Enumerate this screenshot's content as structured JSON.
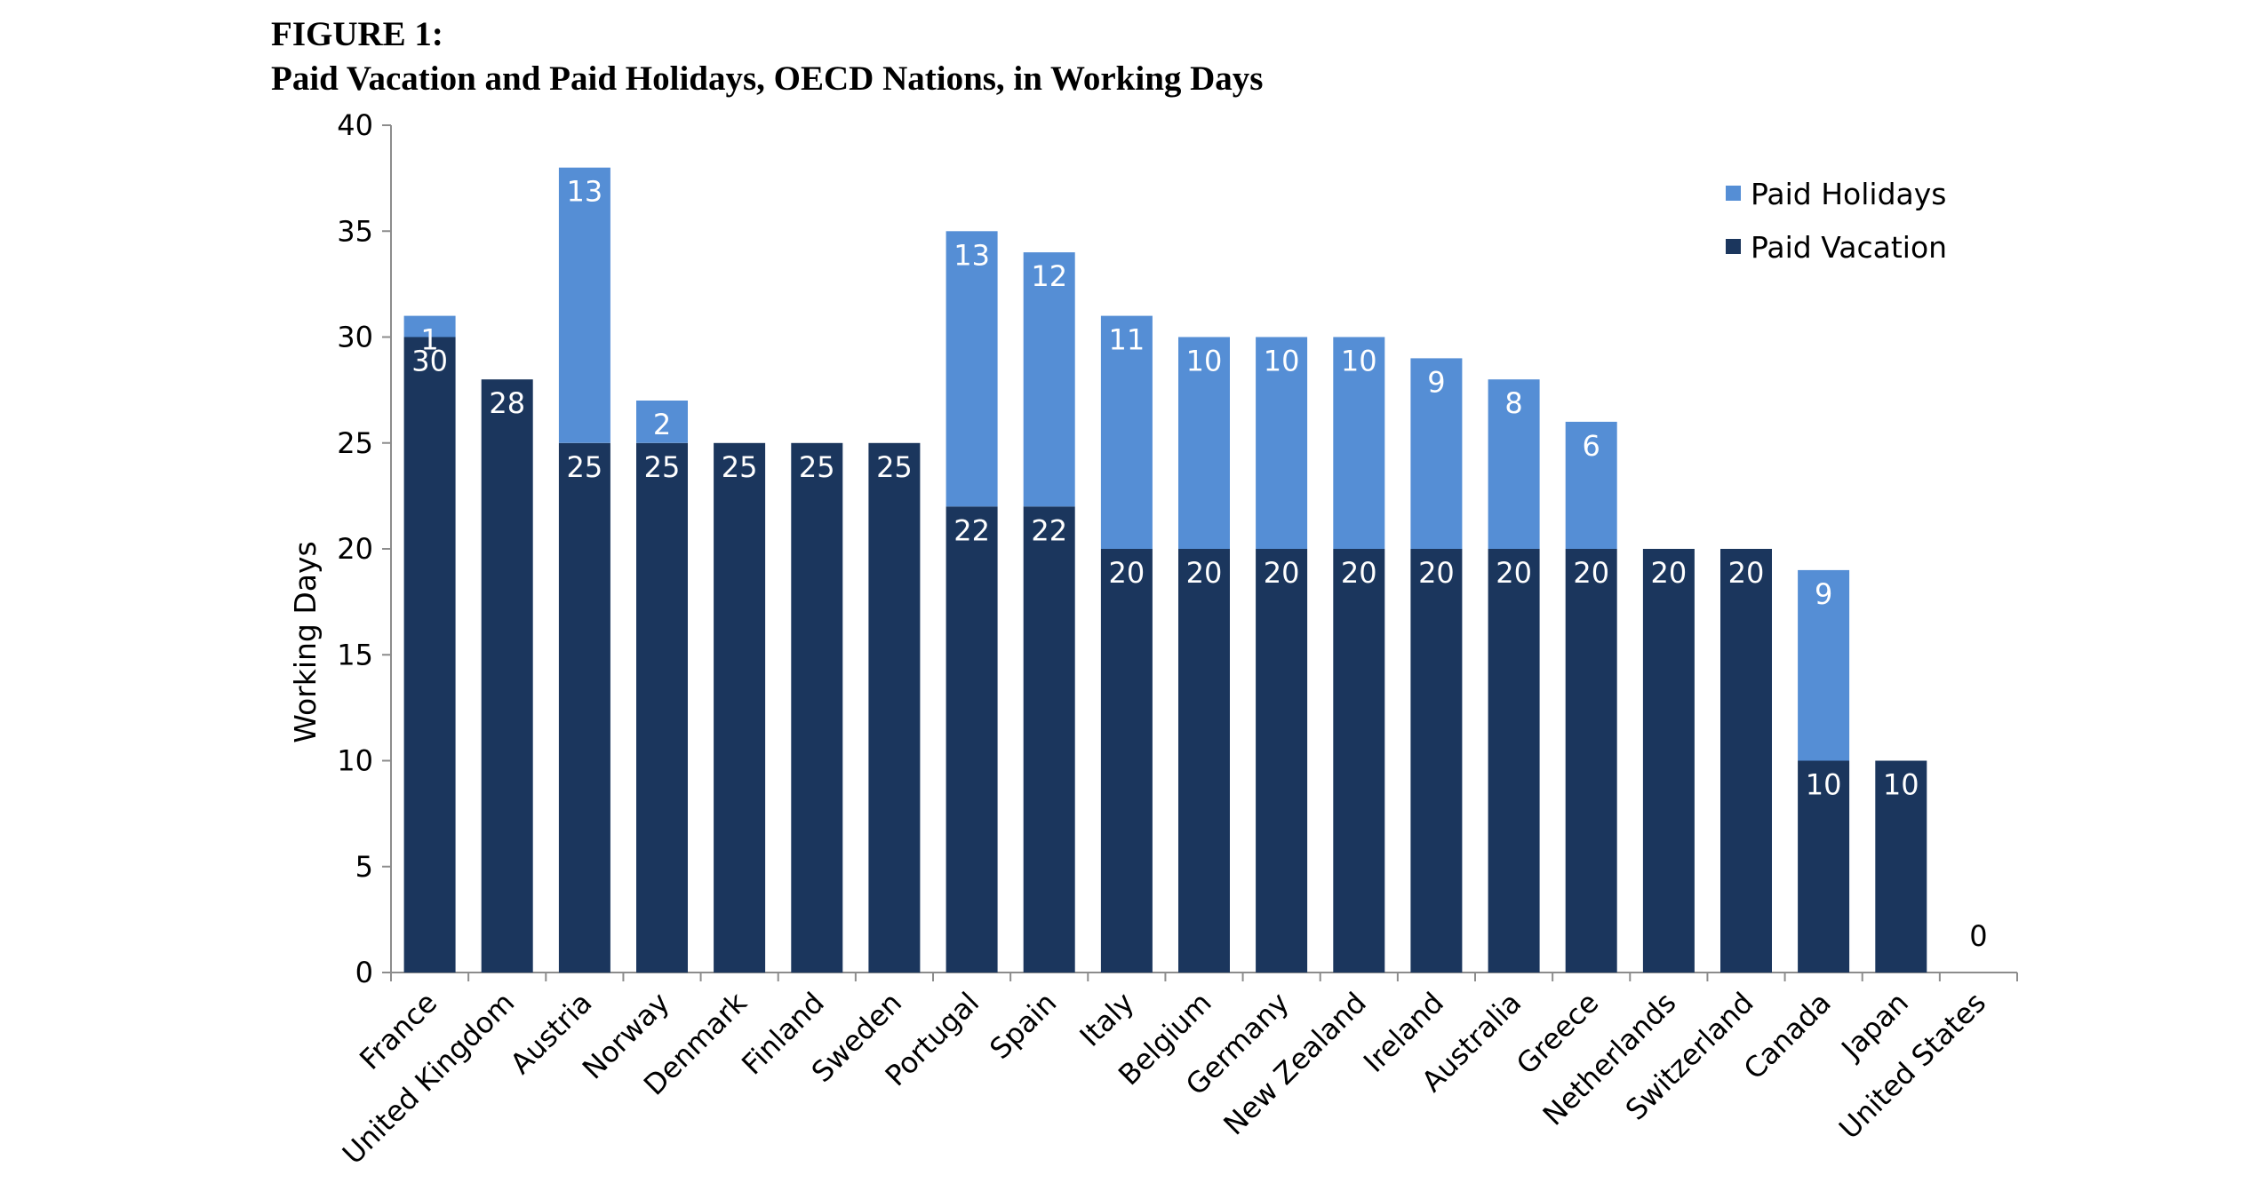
{
  "figure": {
    "label": "FIGURE 1:",
    "title": "Paid Vacation and Paid Holidays, OECD Nations, in Working Days"
  },
  "chart_data": {
    "type": "bar",
    "stacked": true,
    "categories": [
      "France",
      "United Kingdom",
      "Austria",
      "Norway",
      "Denmark",
      "Finland",
      "Sweden",
      "Portugal",
      "Spain",
      "Italy",
      "Belgium",
      "Germany",
      "New Zealand",
      "Ireland",
      "Australia",
      "Greece",
      "Netherlands",
      "Switzerland",
      "Canada",
      "Japan",
      "United States"
    ],
    "series": [
      {
        "name": "Paid Vacation",
        "color": "#1b365d",
        "label_color": "#ffffff",
        "values": [
          30,
          28,
          25,
          25,
          25,
          25,
          25,
          22,
          22,
          20,
          20,
          20,
          20,
          20,
          20,
          20,
          20,
          20,
          10,
          10,
          0
        ]
      },
      {
        "name": "Paid Holidays",
        "color": "#558ed5",
        "label_color": "#ffffff",
        "values": [
          1,
          0,
          13,
          2,
          0,
          0,
          0,
          13,
          12,
          11,
          10,
          10,
          10,
          9,
          8,
          6,
          0,
          0,
          9,
          0,
          0
        ]
      }
    ],
    "ylabel": "Working Days",
    "xlabel": "",
    "ylim": [
      0,
      40
    ],
    "yticks": [
      0,
      5,
      10,
      15,
      20,
      25,
      30,
      35,
      40
    ],
    "grid": false,
    "legend": {
      "position": "top-right",
      "order": [
        "Paid Holidays",
        "Paid Vacation"
      ]
    }
  }
}
